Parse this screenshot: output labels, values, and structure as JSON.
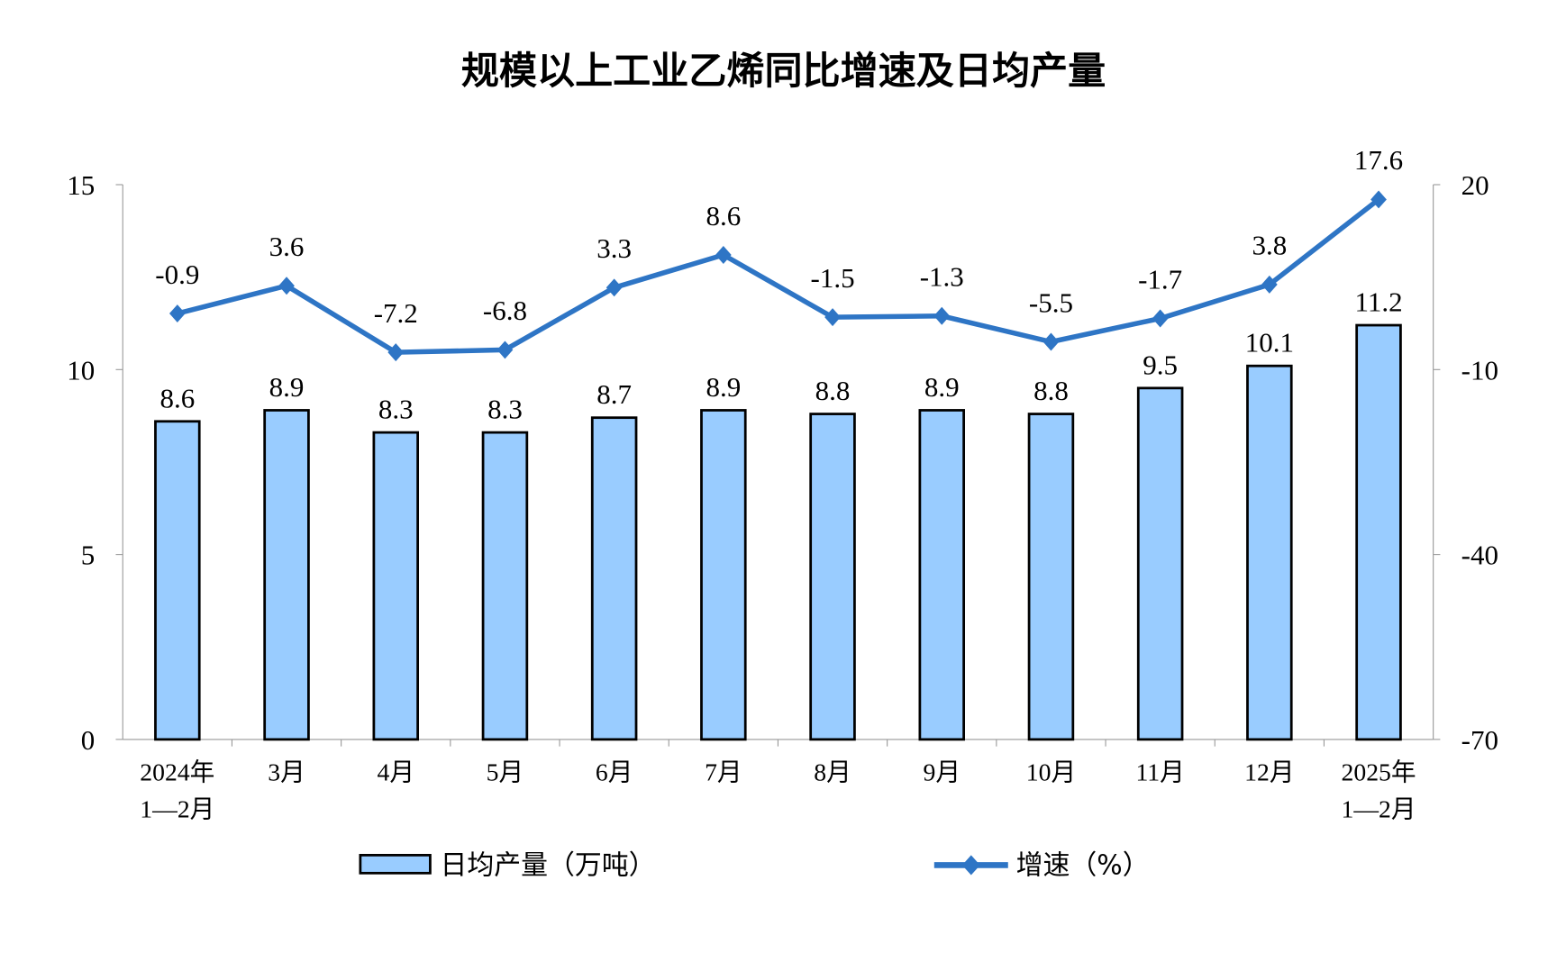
{
  "chart_data": {
    "type": "bar+line",
    "title": "规模以上工业乙烯同比增速及日均产量",
    "categories": [
      [
        "2024年",
        "1—2月"
      ],
      [
        "3月"
      ],
      [
        "4月"
      ],
      [
        "5月"
      ],
      [
        "6月"
      ],
      [
        "7月"
      ],
      [
        "8月"
      ],
      [
        "9月"
      ],
      [
        "10月"
      ],
      [
        "11月"
      ],
      [
        "12月"
      ],
      [
        "2025年",
        "1—2月"
      ]
    ],
    "series": [
      {
        "name": "日均产量（万吨）",
        "type": "bar",
        "axis": "left",
        "color": "#99CCFF",
        "values": [
          8.6,
          8.9,
          8.3,
          8.3,
          8.7,
          8.9,
          8.8,
          8.9,
          8.8,
          9.5,
          10.1,
          11.2
        ]
      },
      {
        "name": "增速（%）",
        "type": "line",
        "axis": "right",
        "color": "#2E75C5",
        "marker": "diamond",
        "values": [
          -0.9,
          3.6,
          -7.2,
          -6.8,
          3.3,
          8.6,
          -1.5,
          -1.3,
          -5.5,
          -1.7,
          3.8,
          17.6
        ]
      }
    ],
    "left_axis": {
      "ylim": [
        0,
        15
      ],
      "ticks": [
        0,
        5,
        10,
        15
      ]
    },
    "right_axis": {
      "ylim": [
        -70,
        20
      ],
      "ticks": [
        -70,
        -40,
        -10,
        20
      ]
    },
    "grid": false,
    "legend": "bottom"
  }
}
